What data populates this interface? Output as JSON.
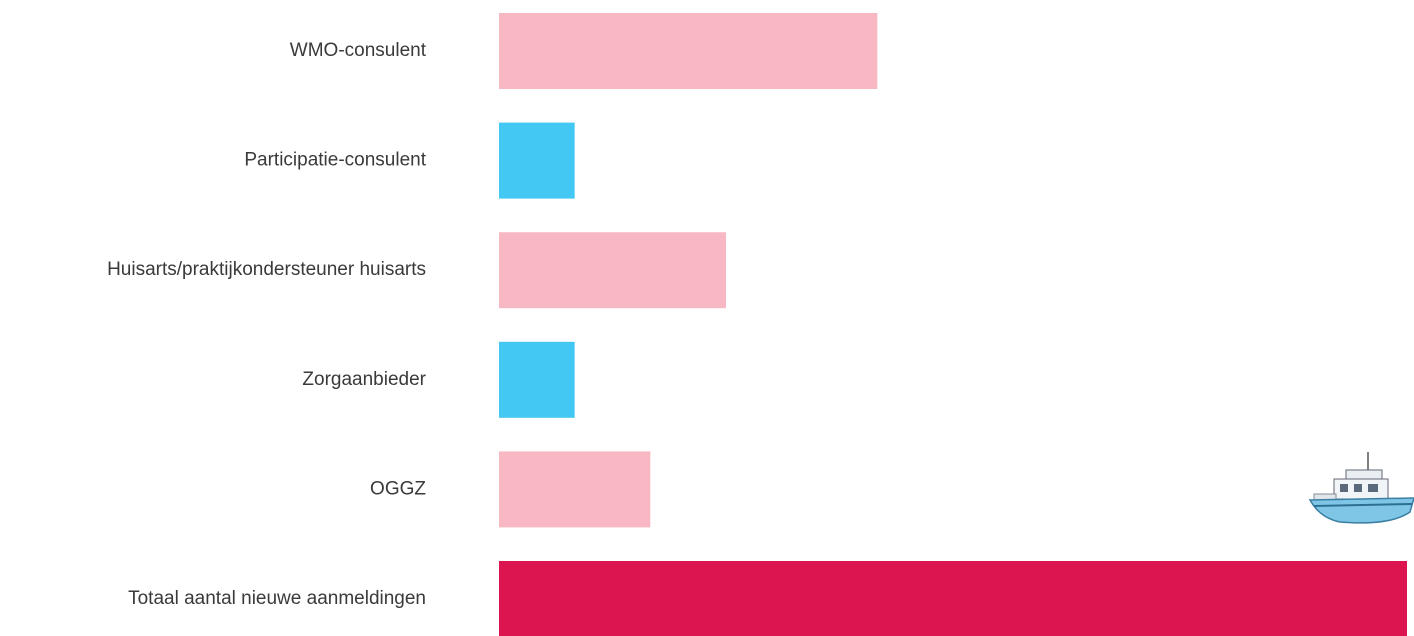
{
  "chart_data": {
    "type": "hbar",
    "categories": [
      "WMO-consulent",
      "Participatie-consulent",
      "Huisarts/praktijkondersteuner huisarts",
      "Zorgaanbieder",
      "OGGZ",
      "Totaal aantal nieuwe aanmeldingen"
    ],
    "values": [
      5,
      1,
      3,
      1,
      2,
      12
    ],
    "colors": [
      "#f8b8c3",
      "#42c8f2",
      "#f8b8c3",
      "#42c8f2",
      "#f8b8c3",
      "#dc1450"
    ]
  }
}
